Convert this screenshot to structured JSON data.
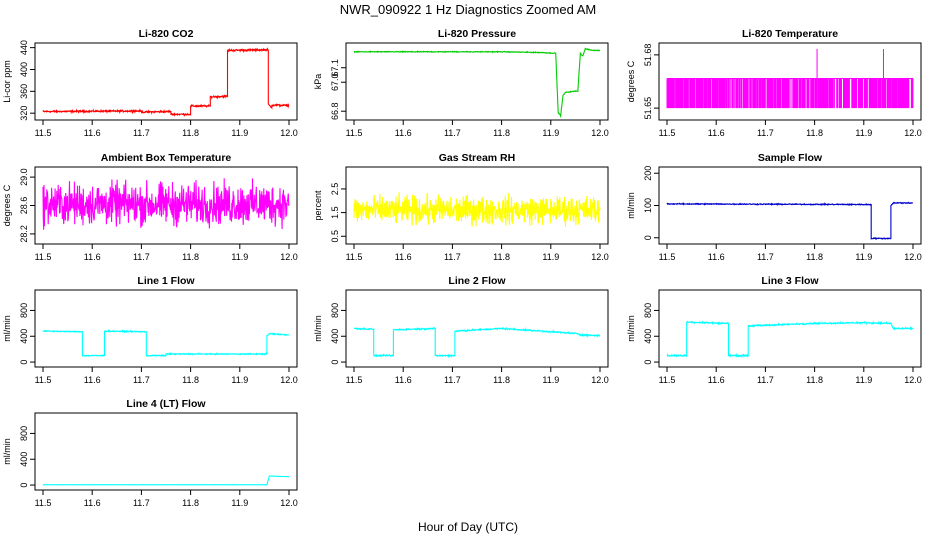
{
  "title": "NWR_090922  1 Hz Diagnostics Zoomed AM",
  "x_axis_title": "Hour of Day (UTC)",
  "chart_data": [
    {
      "type": "line",
      "title": "Li-820 CO2",
      "ylabel": "Li-cor ppm",
      "color": "#ff0000",
      "xlim": [
        11.5,
        12.0
      ],
      "ylim": [
        313,
        443
      ],
      "yticks": [
        320,
        360,
        400,
        440
      ],
      "xticks": [
        11.5,
        11.6,
        11.7,
        11.8,
        11.9,
        12.0
      ],
      "noise": 1.2,
      "series": [
        {
          "x": [
            11.5,
            11.7,
            11.7,
            11.76,
            11.76,
            11.8,
            11.8,
            11.84,
            11.84,
            11.875,
            11.875,
            11.958,
            11.958,
            11.965,
            11.965,
            12.0
          ],
          "y": [
            323,
            324,
            322,
            323,
            318,
            318,
            333,
            333,
            350,
            351,
            435,
            436,
            336,
            330,
            335,
            334
          ]
        }
      ]
    },
    {
      "type": "line",
      "title": "Li-820 Pressure",
      "ylabel": "kPa",
      "color": "#00cc00",
      "xlim": [
        11.5,
        12.0
      ],
      "ylim": [
        66.76,
        67.25
      ],
      "yticks": [
        66.8,
        67.0,
        67.1
      ],
      "yticklabels": [
        "66.8",
        "67.0",
        "67.1"
      ],
      "xticks": [
        11.5,
        11.6,
        11.7,
        11.8,
        11.9,
        12.0
      ],
      "noise": 0.002,
      "series": [
        {
          "x": [
            11.5,
            11.8,
            11.88,
            11.91,
            11.915,
            11.92,
            11.925,
            11.93,
            11.955,
            11.96,
            11.965,
            11.97,
            11.985,
            12.0
          ],
          "y": [
            67.21,
            67.21,
            67.205,
            67.2,
            66.79,
            66.77,
            66.91,
            66.93,
            66.94,
            67.2,
            67.18,
            67.23,
            67.22,
            67.22
          ]
        }
      ]
    },
    {
      "type": "line",
      "title": "Li-820 Temperature",
      "ylabel": "degrees C",
      "color": "#ff00ff",
      "xlim": [
        11.5,
        12.0
      ],
      "ylim": [
        51.645,
        51.685
      ],
      "yticks": [
        51.65,
        51.68
      ],
      "xticks": [
        11.5,
        11.6,
        11.7,
        11.8,
        11.9,
        12.0
      ],
      "levels": [
        51.65,
        51.6667
      ],
      "spikes": [
        [
          11.805,
          51.6833
        ],
        [
          11.94,
          51.6833
        ]
      ]
    },
    {
      "type": "line",
      "title": "Ambient Box Temperature",
      "ylabel": "degrees C",
      "color": "#ff00ff",
      "xlim": [
        11.5,
        12.0
      ],
      "ylim": [
        28.1,
        29.1
      ],
      "yticks": [
        28.2,
        28.6,
        29.0
      ],
      "yticklabels": [
        "28.2",
        "28.6",
        "29.0"
      ],
      "xticks": [
        11.5,
        11.6,
        11.7,
        11.8,
        11.9,
        12.0
      ],
      "noise": 0.22,
      "series": [
        {
          "x": [
            11.5,
            12.0
          ],
          "y": [
            28.62,
            28.62
          ]
        }
      ]
    },
    {
      "type": "line",
      "title": "Gas Stream RH",
      "ylabel": "percent",
      "color": "#ffff00",
      "xlim": [
        11.5,
        12.0
      ],
      "ylim": [
        0.3,
        3.3
      ],
      "yticks": [
        0.5,
        1.5,
        2.5
      ],
      "yticklabels": [
        "0.5",
        "1.5",
        "2.5"
      ],
      "xticks": [
        11.5,
        11.6,
        11.7,
        11.8,
        11.9,
        12.0
      ],
      "noise": 0.45,
      "series": [
        {
          "x": [
            11.5,
            12.0
          ],
          "y": [
            1.6,
            1.6
          ]
        }
      ]
    },
    {
      "type": "line",
      "title": "Sample Flow",
      "ylabel": "ml/min",
      "color": "#0000cc",
      "xlim": [
        11.5,
        12.0
      ],
      "ylim": [
        -10,
        210
      ],
      "yticks": [
        0,
        100,
        200
      ],
      "xticks": [
        11.5,
        11.6,
        11.7,
        11.8,
        11.9,
        12.0
      ],
      "noise": 1.2,
      "series": [
        {
          "x": [
            11.5,
            11.915,
            11.915,
            11.955,
            11.955,
            11.96,
            12.0
          ],
          "y": [
            105,
            103,
            -2,
            -2,
            100,
            108,
            108
          ]
        }
      ]
    },
    {
      "type": "line",
      "title": "Line 1 Flow",
      "ylabel": "ml/min",
      "color": "#00ffff",
      "xlim": [
        11.5,
        12.0
      ],
      "ylim": [
        -30,
        1070
      ],
      "yticks": [
        0,
        400,
        800
      ],
      "xticks": [
        11.5,
        11.6,
        11.7,
        11.8,
        11.9,
        12.0
      ],
      "noise": 6,
      "series": [
        {
          "x": [
            11.5,
            11.58,
            11.58,
            11.625,
            11.625,
            11.71,
            11.71,
            11.75,
            11.75,
            11.955,
            11.955,
            11.96,
            12.0
          ],
          "y": [
            480,
            470,
            100,
            100,
            480,
            470,
            100,
            100,
            125,
            125,
            400,
            440,
            420
          ]
        }
      ]
    },
    {
      "type": "line",
      "title": "Line 2 Flow",
      "ylabel": "ml/min",
      "color": "#00ffff",
      "xlim": [
        11.5,
        12.0
      ],
      "ylim": [
        -30,
        1070
      ],
      "yticks": [
        0,
        400,
        800
      ],
      "xticks": [
        11.5,
        11.6,
        11.7,
        11.8,
        11.9,
        12.0
      ],
      "noise": 8,
      "series": [
        {
          "x": [
            11.5,
            11.54,
            11.54,
            11.58,
            11.58,
            11.665,
            11.665,
            11.705,
            11.705,
            11.8,
            11.9,
            11.955,
            11.96,
            12.0
          ],
          "y": [
            520,
            510,
            100,
            100,
            500,
            520,
            100,
            100,
            480,
            520,
            470,
            440,
            420,
            410
          ]
        }
      ]
    },
    {
      "type": "line",
      "title": "Line 3 Flow",
      "ylabel": "ml/min",
      "color": "#00ffff",
      "xlim": [
        11.5,
        12.0
      ],
      "ylim": [
        -30,
        1070
      ],
      "yticks": [
        0,
        400,
        800
      ],
      "xticks": [
        11.5,
        11.6,
        11.7,
        11.8,
        11.9,
        12.0
      ],
      "noise": 8,
      "series": [
        {
          "x": [
            11.5,
            11.54,
            11.54,
            11.625,
            11.625,
            11.665,
            11.665,
            11.8,
            11.9,
            11.955,
            11.96,
            12.0
          ],
          "y": [
            100,
            100,
            620,
            600,
            100,
            100,
            560,
            600,
            610,
            600,
            520,
            520
          ]
        }
      ]
    },
    {
      "type": "line",
      "title": "Line 4 (LT) Flow",
      "ylabel": "ml/min",
      "color": "#00ffff",
      "xlim": [
        11.5,
        12.0
      ],
      "ylim": [
        -30,
        1070
      ],
      "yticks": [
        0,
        400,
        800
      ],
      "xticks": [
        11.5,
        11.6,
        11.7,
        11.8,
        11.9,
        12.0
      ],
      "noise": 1,
      "series": [
        {
          "x": [
            11.5,
            11.955,
            11.96,
            12.0
          ],
          "y": [
            5,
            5,
            140,
            130
          ]
        }
      ]
    }
  ]
}
